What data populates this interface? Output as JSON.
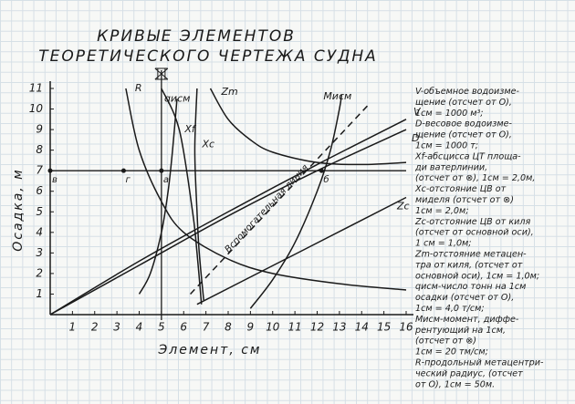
{
  "chart_data": {
    "type": "line",
    "title": [
      "КРИВЫЕ ЭЛЕМЕНТОВ",
      "ТЕОРЕТИЧЕСКОГО ЧЕРТЕЖА СУДНА"
    ],
    "x_label": "Элемент, см",
    "y_label": "Осадка, м",
    "xlim": [
      0,
      16
    ],
    "ylim": [
      0,
      11
    ],
    "xticks": [
      1,
      2,
      3,
      4,
      5,
      6,
      7,
      8,
      9,
      10,
      11,
      12,
      13,
      14,
      15,
      16
    ],
    "yticks": [
      1,
      2,
      3,
      4,
      5,
      6,
      7,
      8,
      9,
      10,
      11
    ],
    "series": [
      {
        "name": "V",
        "color": "#1a1a1a",
        "x": [
          0,
          4,
          8,
          12,
          16
        ],
        "y": [
          0,
          2.6,
          5.0,
          7.3,
          9.5
        ]
      },
      {
        "name": "D",
        "color": "#1a1a1a",
        "x": [
          0,
          4,
          8,
          12,
          16
        ],
        "y": [
          0,
          2.4,
          4.8,
          7.0,
          9.0
        ]
      },
      {
        "name": "Zm",
        "color": "#1a1a1a",
        "x": [
          7.2,
          8,
          9,
          10,
          12,
          14,
          16
        ],
        "y": [
          11,
          9.5,
          8.5,
          7.9,
          7.4,
          7.3,
          7.4
        ]
      },
      {
        "name": "R",
        "color": "#1a1a1a",
        "x": [
          3.4,
          4,
          5,
          6,
          8,
          10,
          13,
          16
        ],
        "y": [
          11,
          8,
          5.5,
          4,
          2.7,
          2.0,
          1.5,
          1.2
        ]
      },
      {
        "name": "Mисм",
        "color": "#1a1a1a",
        "x": [
          9,
          10,
          11,
          12,
          12.6,
          13,
          13.1
        ],
        "y": [
          0.3,
          1.7,
          3.5,
          6,
          8,
          10,
          10.7
        ]
      },
      {
        "name": "qисм",
        "color": "#1a1a1a",
        "x": [
          4,
          4.5,
          5,
          5.3,
          5.5,
          5.7
        ],
        "y": [
          1.0,
          2,
          4,
          6,
          8,
          10.5
        ]
      },
      {
        "name": "Xf",
        "color": "#1a1a1a",
        "x": [
          5.0,
          5.8,
          6.4,
          6.6,
          6.8
        ],
        "y": [
          11,
          9,
          5,
          3,
          0.5
        ]
      },
      {
        "name": "Xc",
        "color": "#1a1a1a",
        "x": [
          6.6,
          6.5,
          6.6,
          6.7,
          6.9
        ],
        "y": [
          11,
          8,
          5,
          3,
          0.7
        ]
      },
      {
        "name": "Zc",
        "color": "#1a1a1a",
        "x": [
          6.6,
          16
        ],
        "y": [
          0.5,
          5.7
        ]
      },
      {
        "name": "Вспомогательная линия",
        "color": "#1a1a1a",
        "dash": true,
        "x": [
          6.3,
          14.3
        ],
        "y": [
          1.0,
          10.2
        ]
      }
    ],
    "points": [
      {
        "label": "в",
        "x": 0,
        "y": 7
      },
      {
        "label": "г",
        "x": 3.3,
        "y": 7
      },
      {
        "label": "а",
        "x": 5,
        "y": 7
      },
      {
        "label": "б",
        "x": 12.2,
        "y": 7
      }
    ],
    "midship_x": 5,
    "notes": [
      "V-объемное водоизме-",
      "щение (отсчет от О),",
      "1см = 1000 м³;",
      "D-весовое водоизме-",
      "щение (отсчет от О),",
      "1см = 1000 т;",
      "Xf-абсцисса ЦТ площа-",
      "ди ватерлинии,",
      "(отсчет от ⊗), 1см = 2,0м,",
      "Xc-отстояние ЦВ от",
      "миделя (отсчет от ⊗)",
      "1см = 2,0м;",
      "Zc-отстояние ЦВ от киля",
      "(отсчет от основной оси),",
      "1 см = 1,0м;",
      "Zm-отстояние метацен-",
      "тра от киля, (отсчет от",
      "основной оси), 1см = 1,0м;",
      "qисм-число тонн на 1см",
      "осадки (отсчет от О),",
      "1см = 4,0 т/см;",
      "Mисм-момент, диффе-",
      "рентующий на 1см,",
      "(отсчет от ⊗)",
      "1см = 20 тм/см;",
      "R-продольный метацентри-",
      "ческий радиус, (отсчет",
      "от О), 1см = 50м."
    ]
  }
}
